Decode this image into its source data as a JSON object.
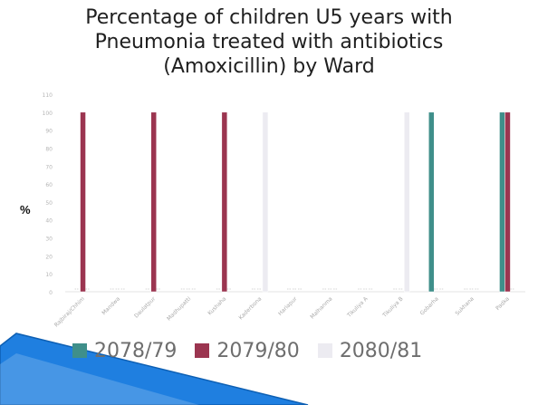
{
  "chart_data": {
    "type": "bar",
    "title_lines": [
      "Percentage of children U5 years with",
      "Pneumonia treated with antibiotics",
      "(Amoxicillin) by Ward"
    ],
    "ylabel": "%",
    "ylim": [
      0,
      110
    ],
    "yticks": [
      0,
      10,
      20,
      30,
      40,
      50,
      60,
      70,
      80,
      90,
      100,
      110
    ],
    "categories": [
      "Rajbiraj/Chhim",
      "Mandwa",
      "Daulatpur",
      "Madhupatti",
      "Kushaha",
      "Kaderbona",
      "Hariapur",
      "Malhanma",
      "Tikuliya A",
      "Tikuliya B",
      "Gobarha",
      "Sukhana",
      "Padka"
    ],
    "series": [
      {
        "name": "2078/79",
        "color": "#3f8f8a",
        "values": [
          0,
          0,
          0,
          0,
          0,
          0,
          0,
          0,
          0,
          0,
          100,
          0,
          100
        ]
      },
      {
        "name": "2079/80",
        "color": "#9b3550",
        "values": [
          100,
          0,
          100,
          0,
          100,
          0,
          0,
          0,
          0,
          0,
          0,
          0,
          100
        ]
      },
      {
        "name": "2080/81",
        "color": "#ecebf1",
        "values": [
          0,
          0,
          0,
          0,
          0,
          100,
          0,
          0,
          0,
          100,
          0,
          0,
          0
        ]
      }
    ],
    "grid": false,
    "legend_position": "bottom"
  }
}
